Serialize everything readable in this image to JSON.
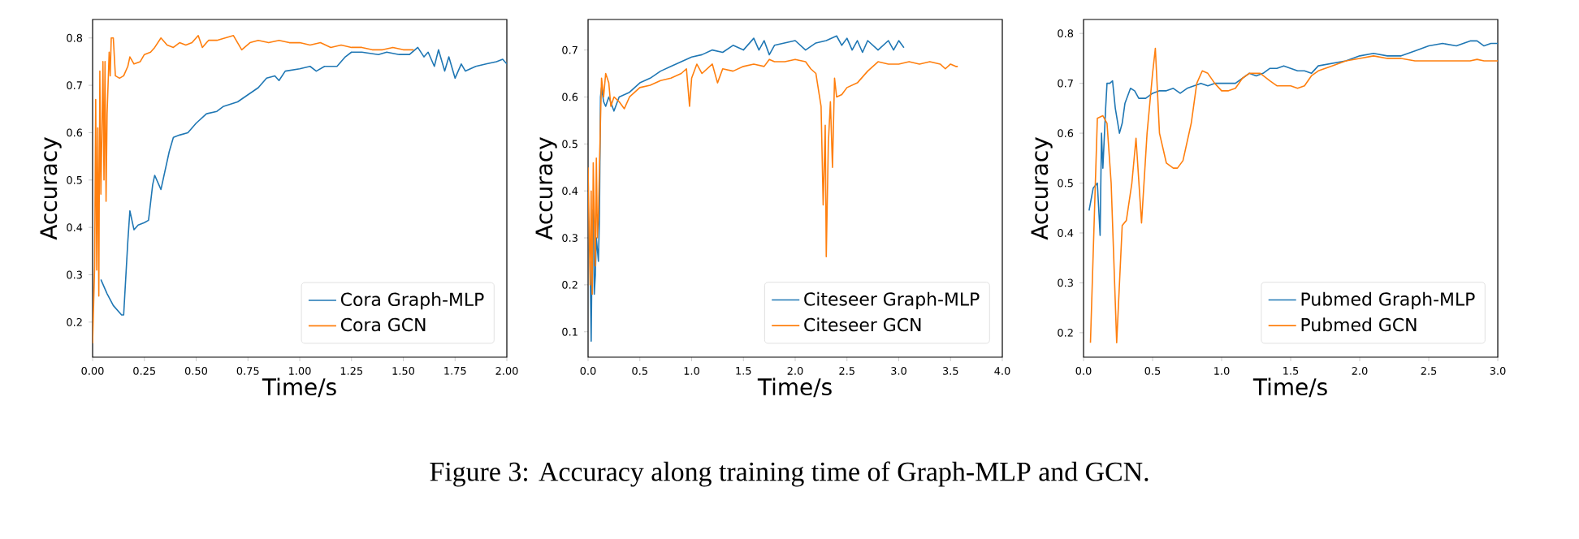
{
  "chart_data": [
    {
      "type": "line",
      "xlabel": "Time/s",
      "ylabel": "Accuracy",
      "xlim": [
        0,
        2
      ],
      "ylim": [
        0.126,
        0.839
      ],
      "xticks": [
        {
          "value": 0,
          "label": "0.00"
        },
        {
          "value": 0.25,
          "label": "0.25"
        },
        {
          "value": 0.5,
          "label": "0.50"
        },
        {
          "value": 0.75,
          "label": "0.75"
        },
        {
          "value": 1,
          "label": "1.00"
        },
        {
          "value": 1.25,
          "label": "1.25"
        },
        {
          "value": 1.5,
          "label": "1.50"
        },
        {
          "value": 1.75,
          "label": "1.75"
        },
        {
          "value": 2,
          "label": "2.00"
        }
      ],
      "yticks": [
        0.2,
        0.3,
        0.4,
        0.5,
        0.6,
        0.7,
        0.8
      ],
      "legend": "bottom right",
      "grid": false,
      "series": [
        {
          "name": "Cora Graph-MLP",
          "color": "#1f77b4",
          "x": [
            0.04,
            0.07,
            0.1,
            0.14,
            0.15,
            0.17,
            0.18,
            0.2,
            0.22,
            0.25,
            0.27,
            0.29,
            0.3,
            0.32,
            0.33,
            0.35,
            0.37,
            0.39,
            0.42,
            0.46,
            0.5,
            0.55,
            0.6,
            0.63,
            0.7,
            0.75,
            0.8,
            0.84,
            0.88,
            0.9,
            0.93,
            1.0,
            1.05,
            1.08,
            1.12,
            1.18,
            1.22,
            1.25,
            1.3,
            1.38,
            1.42,
            1.48,
            1.53,
            1.57,
            1.6,
            1.62,
            1.65,
            1.67,
            1.7,
            1.72,
            1.75,
            1.78,
            1.8,
            1.85,
            1.9,
            1.95,
            1.98,
            2.0
          ],
          "values": [
            0.29,
            0.26,
            0.235,
            0.215,
            0.215,
            0.37,
            0.435,
            0.395,
            0.405,
            0.41,
            0.415,
            0.49,
            0.51,
            0.49,
            0.48,
            0.52,
            0.56,
            0.59,
            0.595,
            0.6,
            0.62,
            0.64,
            0.645,
            0.655,
            0.665,
            0.68,
            0.695,
            0.715,
            0.72,
            0.71,
            0.73,
            0.735,
            0.74,
            0.73,
            0.74,
            0.74,
            0.76,
            0.77,
            0.77,
            0.765,
            0.77,
            0.765,
            0.765,
            0.78,
            0.76,
            0.77,
            0.74,
            0.775,
            0.73,
            0.76,
            0.715,
            0.745,
            0.73,
            0.74,
            0.745,
            0.75,
            0.755,
            0.745
          ]
        },
        {
          "name": "Cora GCN",
          "color": "#ff7f0e",
          "x": [
            0.0,
            0.01,
            0.015,
            0.02,
            0.025,
            0.03,
            0.035,
            0.04,
            0.045,
            0.05,
            0.055,
            0.06,
            0.065,
            0.07,
            0.08,
            0.085,
            0.09,
            0.1,
            0.11,
            0.13,
            0.15,
            0.17,
            0.18,
            0.2,
            0.23,
            0.25,
            0.28,
            0.3,
            0.33,
            0.36,
            0.39,
            0.42,
            0.45,
            0.48,
            0.51,
            0.53,
            0.56,
            0.6,
            0.64,
            0.68,
            0.72,
            0.76,
            0.8,
            0.85,
            0.9,
            0.95,
            1.0,
            1.05,
            1.1,
            1.15,
            1.2,
            1.25,
            1.3,
            1.35,
            1.4,
            1.45,
            1.5,
            1.55
          ],
          "values": [
            0.155,
            0.32,
            0.67,
            0.31,
            0.61,
            0.255,
            0.73,
            0.47,
            0.6,
            0.75,
            0.5,
            0.75,
            0.455,
            0.64,
            0.77,
            0.72,
            0.8,
            0.8,
            0.72,
            0.715,
            0.72,
            0.74,
            0.76,
            0.745,
            0.75,
            0.765,
            0.77,
            0.78,
            0.8,
            0.785,
            0.78,
            0.79,
            0.785,
            0.79,
            0.805,
            0.78,
            0.795,
            0.795,
            0.8,
            0.805,
            0.775,
            0.79,
            0.795,
            0.79,
            0.795,
            0.79,
            0.79,
            0.785,
            0.79,
            0.78,
            0.785,
            0.78,
            0.78,
            0.775,
            0.775,
            0.78,
            0.775,
            0.775
          ]
        }
      ]
    },
    {
      "type": "line",
      "xlabel": "Time/s",
      "ylabel": "Accuracy",
      "xlim": [
        0,
        4
      ],
      "ylim": [
        0.046,
        0.765
      ],
      "xticks": [
        {
          "value": 0,
          "label": "0.0"
        },
        0.5,
        {
          "value": 1,
          "label": "1.0"
        },
        1.5,
        {
          "value": 2,
          "label": "2.0"
        },
        2.5,
        {
          "value": 3,
          "label": "3.0"
        },
        3.5,
        {
          "value": 4,
          "label": "4.0"
        }
      ],
      "yticks": [
        0.1,
        0.2,
        0.3,
        0.4,
        0.5,
        0.6,
        0.7
      ],
      "legend": "bottom right",
      "grid": false,
      "annotations": [
        "Figure 3: Accuracy along training time of Graph-MLP and GCN."
      ],
      "series": [
        {
          "name": "Citeseer Graph-MLP",
          "color": "#1f77b4",
          "x": [
            0.02,
            0.03,
            0.04,
            0.05,
            0.06,
            0.07,
            0.08,
            0.1,
            0.11,
            0.12,
            0.13,
            0.15,
            0.17,
            0.2,
            0.25,
            0.3,
            0.4,
            0.5,
            0.6,
            0.7,
            0.8,
            0.9,
            1.0,
            1.1,
            1.2,
            1.3,
            1.4,
            1.5,
            1.6,
            1.65,
            1.7,
            1.75,
            1.8,
            1.9,
            2.0,
            2.1,
            2.2,
            2.3,
            2.4,
            2.45,
            2.5,
            2.55,
            2.6,
            2.65,
            2.7,
            2.8,
            2.9,
            2.95,
            3.0,
            3.05
          ],
          "values": [
            0.25,
            0.08,
            0.3,
            0.36,
            0.18,
            0.22,
            0.3,
            0.25,
            0.35,
            0.6,
            0.62,
            0.59,
            0.58,
            0.6,
            0.57,
            0.6,
            0.61,
            0.63,
            0.64,
            0.655,
            0.665,
            0.675,
            0.685,
            0.69,
            0.7,
            0.695,
            0.71,
            0.7,
            0.725,
            0.7,
            0.72,
            0.69,
            0.71,
            0.715,
            0.72,
            0.7,
            0.715,
            0.72,
            0.73,
            0.71,
            0.725,
            0.7,
            0.72,
            0.695,
            0.72,
            0.7,
            0.72,
            0.7,
            0.72,
            0.705
          ]
        },
        {
          "name": "Citeseer GCN",
          "color": "#ff7f0e",
          "x": [
            0.0,
            0.02,
            0.03,
            0.04,
            0.05,
            0.07,
            0.08,
            0.09,
            0.1,
            0.12,
            0.13,
            0.15,
            0.17,
            0.2,
            0.22,
            0.25,
            0.3,
            0.35,
            0.4,
            0.5,
            0.6,
            0.7,
            0.8,
            0.9,
            0.95,
            0.98,
            1.0,
            1.05,
            1.1,
            1.2,
            1.25,
            1.3,
            1.4,
            1.5,
            1.6,
            1.7,
            1.75,
            1.8,
            1.9,
            2.0,
            2.1,
            2.15,
            2.2,
            2.25,
            2.27,
            2.28,
            2.29,
            2.3,
            2.32,
            2.34,
            2.36,
            2.38,
            2.4,
            2.45,
            2.5,
            2.6,
            2.7,
            2.8,
            2.9,
            3.0,
            3.1,
            3.2,
            3.3,
            3.4,
            3.45,
            3.5,
            3.55,
            3.57
          ],
          "values": [
            0.45,
            0.2,
            0.4,
            0.18,
            0.46,
            0.24,
            0.47,
            0.3,
            0.35,
            0.55,
            0.64,
            0.6,
            0.65,
            0.63,
            0.58,
            0.6,
            0.59,
            0.575,
            0.6,
            0.62,
            0.625,
            0.635,
            0.64,
            0.65,
            0.66,
            0.58,
            0.64,
            0.67,
            0.65,
            0.67,
            0.63,
            0.66,
            0.655,
            0.665,
            0.67,
            0.665,
            0.68,
            0.675,
            0.675,
            0.68,
            0.675,
            0.66,
            0.65,
            0.58,
            0.37,
            0.45,
            0.54,
            0.26,
            0.5,
            0.59,
            0.45,
            0.64,
            0.6,
            0.605,
            0.62,
            0.63,
            0.655,
            0.675,
            0.67,
            0.67,
            0.675,
            0.67,
            0.675,
            0.67,
            0.66,
            0.67,
            0.665,
            0.665
          ]
        }
      ]
    },
    {
      "type": "line",
      "xlabel": "Time/s",
      "ylabel": "Accuracy",
      "xlim": [
        0,
        3
      ],
      "ylim": [
        0.151,
        0.828
      ],
      "xticks": [
        {
          "value": 0,
          "label": "0.0"
        },
        0.5,
        {
          "value": 1,
          "label": "1.0"
        },
        1.5,
        {
          "value": 2,
          "label": "2.0"
        },
        2.5,
        {
          "value": 3,
          "label": "3.0"
        }
      ],
      "yticks": [
        0.2,
        0.3,
        0.4,
        0.5,
        0.6,
        0.7,
        0.8
      ],
      "legend": "bottom right",
      "grid": false,
      "series": [
        {
          "name": "Pubmed Graph-MLP",
          "color": "#1f77b4",
          "x": [
            0.04,
            0.07,
            0.1,
            0.12,
            0.13,
            0.14,
            0.16,
            0.17,
            0.19,
            0.21,
            0.23,
            0.26,
            0.28,
            0.3,
            0.34,
            0.37,
            0.4,
            0.45,
            0.5,
            0.55,
            0.6,
            0.65,
            0.7,
            0.75,
            0.8,
            0.85,
            0.9,
            0.95,
            1.0,
            1.1,
            1.15,
            1.2,
            1.25,
            1.3,
            1.35,
            1.4,
            1.45,
            1.5,
            1.55,
            1.6,
            1.65,
            1.7,
            1.8,
            1.9,
            2.0,
            2.1,
            2.2,
            2.3,
            2.4,
            2.5,
            2.6,
            2.7,
            2.8,
            2.85,
            2.9,
            2.95,
            3.0
          ],
          "values": [
            0.445,
            0.49,
            0.5,
            0.395,
            0.6,
            0.53,
            0.65,
            0.7,
            0.7,
            0.705,
            0.65,
            0.6,
            0.62,
            0.66,
            0.69,
            0.685,
            0.67,
            0.67,
            0.68,
            0.685,
            0.685,
            0.69,
            0.68,
            0.69,
            0.695,
            0.7,
            0.695,
            0.7,
            0.7,
            0.7,
            0.71,
            0.72,
            0.715,
            0.72,
            0.73,
            0.73,
            0.735,
            0.73,
            0.725,
            0.725,
            0.72,
            0.735,
            0.74,
            0.745,
            0.755,
            0.76,
            0.755,
            0.755,
            0.765,
            0.775,
            0.78,
            0.775,
            0.785,
            0.785,
            0.775,
            0.78,
            0.78
          ]
        },
        {
          "name": "Pubmed GCN",
          "color": "#ff7f0e",
          "x": [
            0.05,
            0.1,
            0.14,
            0.17,
            0.2,
            0.24,
            0.28,
            0.31,
            0.35,
            0.38,
            0.42,
            0.46,
            0.5,
            0.52,
            0.55,
            0.6,
            0.65,
            0.68,
            0.72,
            0.78,
            0.82,
            0.86,
            0.9,
            0.95,
            1.0,
            1.05,
            1.1,
            1.15,
            1.2,
            1.28,
            1.35,
            1.4,
            1.5,
            1.55,
            1.6,
            1.65,
            1.7,
            1.8,
            1.9,
            2.0,
            2.1,
            2.2,
            2.3,
            2.4,
            2.5,
            2.6,
            2.7,
            2.8,
            2.85,
            2.9,
            3.0
          ],
          "values": [
            0.18,
            0.63,
            0.635,
            0.62,
            0.5,
            0.18,
            0.415,
            0.425,
            0.5,
            0.59,
            0.42,
            0.6,
            0.72,
            0.77,
            0.6,
            0.54,
            0.53,
            0.53,
            0.545,
            0.62,
            0.7,
            0.725,
            0.72,
            0.7,
            0.685,
            0.685,
            0.69,
            0.71,
            0.72,
            0.72,
            0.705,
            0.695,
            0.695,
            0.69,
            0.695,
            0.715,
            0.725,
            0.735,
            0.745,
            0.75,
            0.755,
            0.75,
            0.75,
            0.745,
            0.745,
            0.745,
            0.745,
            0.745,
            0.748,
            0.745,
            0.745
          ]
        }
      ]
    }
  ]
}
